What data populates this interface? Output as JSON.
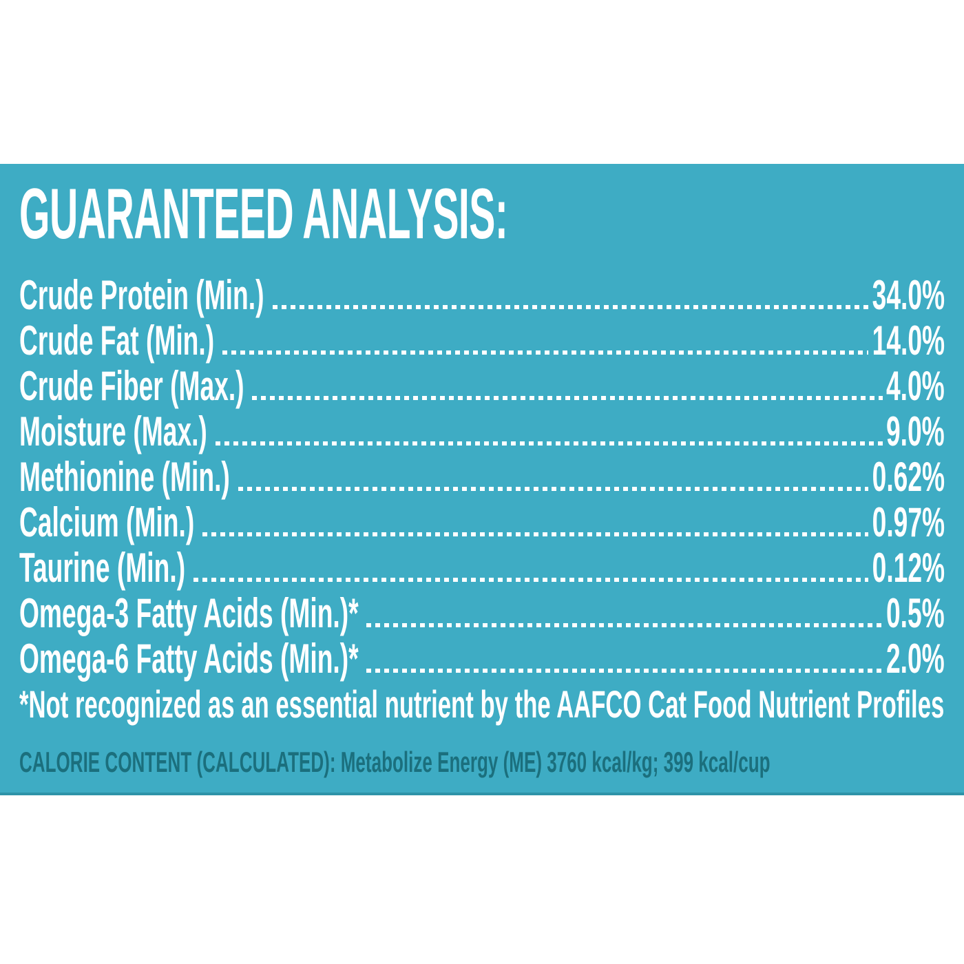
{
  "panel": {
    "title": "GUARANTEED ANALYSIS:",
    "rows": [
      {
        "label": "Crude Protein (Min.)",
        "value": "34.0%"
      },
      {
        "label": "Crude Fat (Min.)",
        "value": "14.0%"
      },
      {
        "label": "Crude Fiber (Max.)",
        "value": "4.0%"
      },
      {
        "label": "Moisture (Max.)",
        "value": "9.0%"
      },
      {
        "label": "Methionine (Min.)",
        "value": "0.62%"
      },
      {
        "label": "Calcium (Min.)",
        "value": "0.97%"
      },
      {
        "label": "Taurine (Min.)",
        "value": "0.12%"
      },
      {
        "label": "Omega-3 Fatty Acids (Min.)*",
        "value": "0.5%"
      },
      {
        "label": "Omega-6 Fatty Acids (Min.)*",
        "value": "2.0%"
      }
    ],
    "footnote": "*Not recognized as an essential nutrient by the AAFCO Cat Food Nutrient Profiles",
    "calorie_line": "CALORIE CONTENT (CALCULATED): Metabolize Energy (ME) 3760 kcal/kg; 399 kcal/cup",
    "colors": {
      "background": "#3EACC4",
      "text": "#FFFFFF",
      "dark_accent": "#1B6F7D",
      "bottom_edge": "#2E93A8",
      "page_background": "#FFFFFF"
    }
  }
}
